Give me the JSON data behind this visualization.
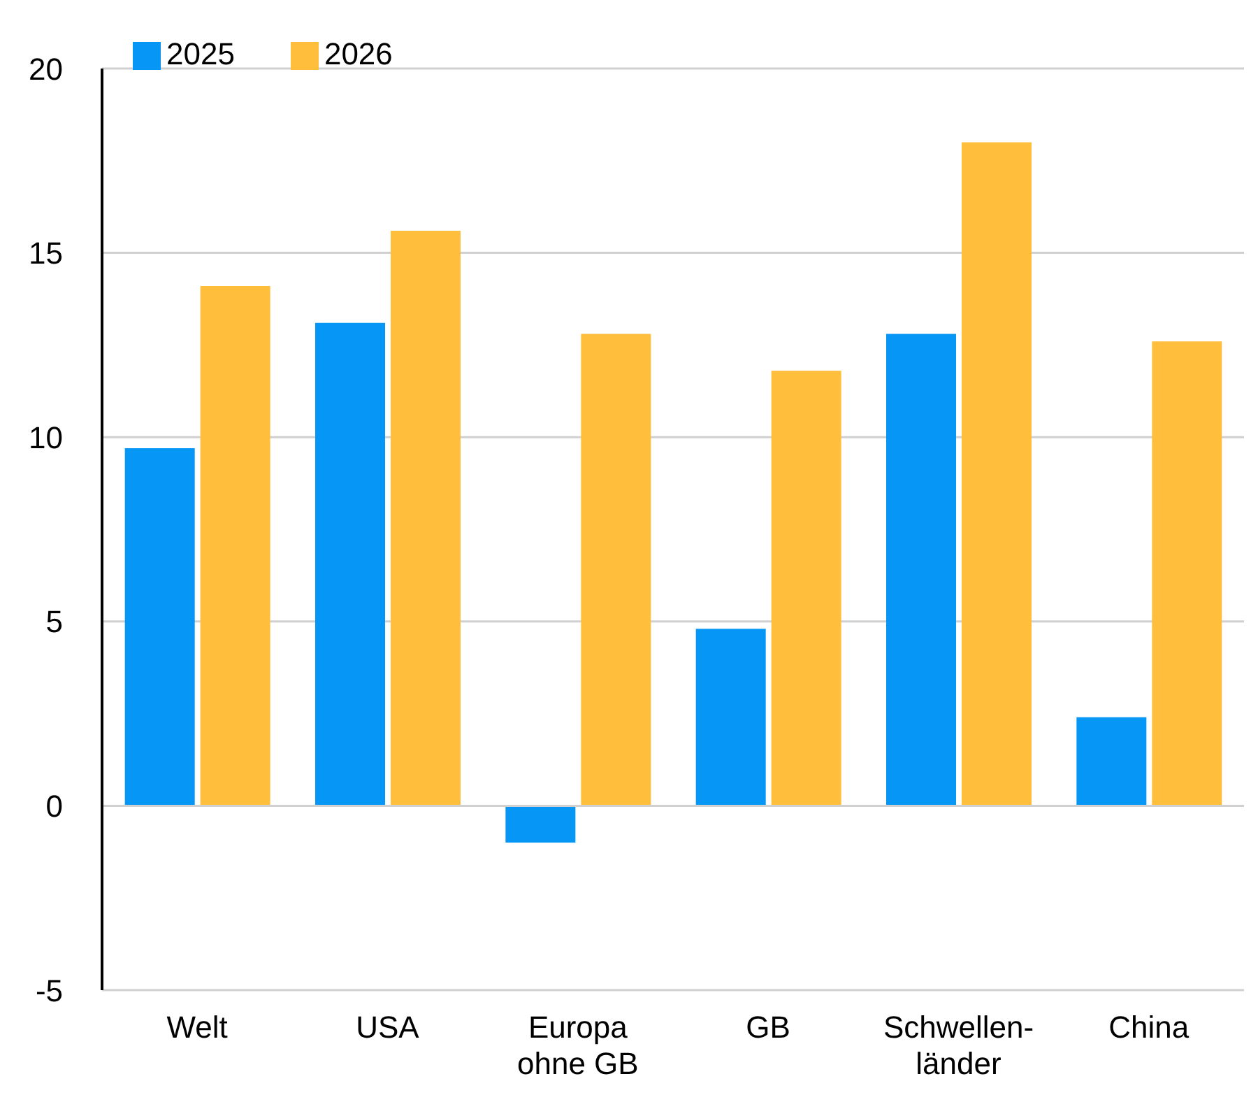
{
  "chart_data": {
    "type": "bar",
    "categories": [
      "Welt",
      "USA",
      "Europa\nohne GB",
      "GB",
      "Schwellen-\nländer",
      "China"
    ],
    "series": [
      {
        "name": "2025",
        "color": "#0596f6",
        "values": [
          9.7,
          13.1,
          -1.0,
          4.8,
          12.8,
          2.4
        ]
      },
      {
        "name": "2026",
        "color": "#ffbe3c",
        "values": [
          14.1,
          15.6,
          12.8,
          11.8,
          18.0,
          12.6
        ]
      }
    ],
    "ylim": [
      -5,
      20
    ],
    "yticks": [
      -5,
      0,
      5,
      10,
      15,
      20
    ],
    "grid": "y",
    "legend": "top left"
  }
}
